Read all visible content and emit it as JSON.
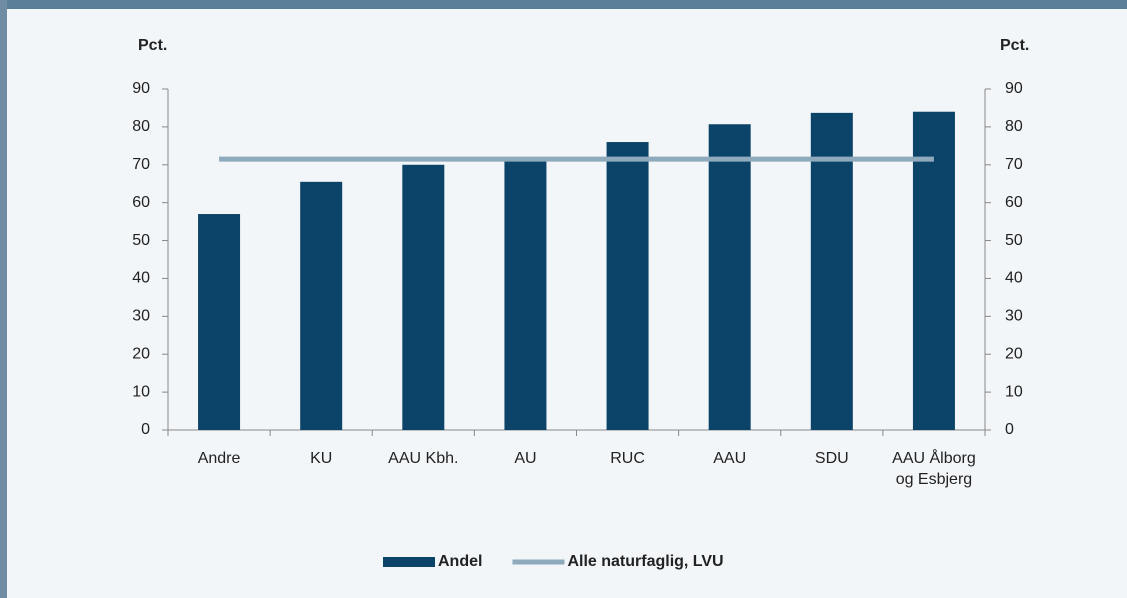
{
  "chart_data": {
    "type": "bar",
    "y_label": "Pct.",
    "y2_label": "Pct.",
    "categories": [
      "Andre",
      "KU",
      "AAU Kbh.",
      "AU",
      "RUC",
      "AAU",
      "SDU",
      "AAU Ålborg og Esbjerg"
    ],
    "series": [
      {
        "name": "Andel",
        "type": "bar",
        "color": "#0b4468",
        "values": [
          57,
          65.5,
          70,
          71,
          76,
          80.7,
          83.7,
          84
        ]
      },
      {
        "name": "Alle naturfaglig, LVU",
        "type": "line",
        "color": "#8eaabc",
        "values": [
          71.5,
          71.5,
          71.5,
          71.5,
          71.5,
          71.5,
          71.5,
          71.5
        ]
      }
    ],
    "ylim": [
      0,
      90
    ],
    "yticks": [
      0,
      10,
      20,
      30,
      40,
      50,
      60,
      70,
      80,
      90
    ],
    "y2lim": [
      0,
      90
    ],
    "y2ticks": [
      0,
      10,
      20,
      30,
      40,
      50,
      60,
      70,
      80,
      90
    ],
    "legend": "bottom"
  }
}
